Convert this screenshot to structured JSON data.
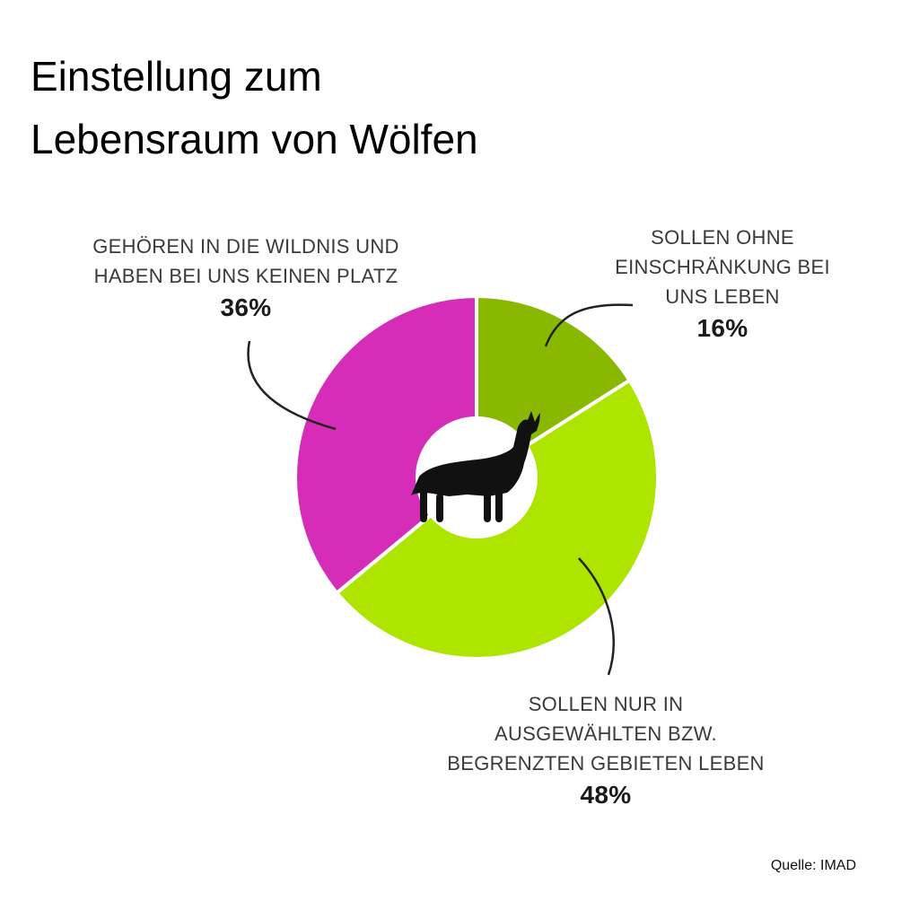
{
  "title_lines": [
    "Einstellung zum",
    "Lebensraum von Wölfen"
  ],
  "source": "Quelle: IMAD",
  "chart_data": {
    "type": "pie",
    "variant": "donut",
    "center_icon": "howling-wolf-icon",
    "slices": [
      {
        "label_lines": [
          "GEHÖREN IN DIE WILDNIS UND",
          "HABEN BEI UNS KEINEN PLATZ"
        ],
        "value": 36,
        "value_label": "36%",
        "color": "#d62db8"
      },
      {
        "label_lines": [
          "SOLLEN OHNE",
          "EINSCHRÄNKUNG BEI",
          "UNS LEBEN"
        ],
        "value": 16,
        "value_label": "16%",
        "color": "#88b800"
      },
      {
        "label_lines": [
          "SOLLEN NUR IN",
          "AUSGEWÄHLTEN BZW.",
          "BEGRENZTEN GEBIETEN LEBEN"
        ],
        "value": 48,
        "value_label": "48%",
        "color": "#aee500"
      }
    ]
  }
}
